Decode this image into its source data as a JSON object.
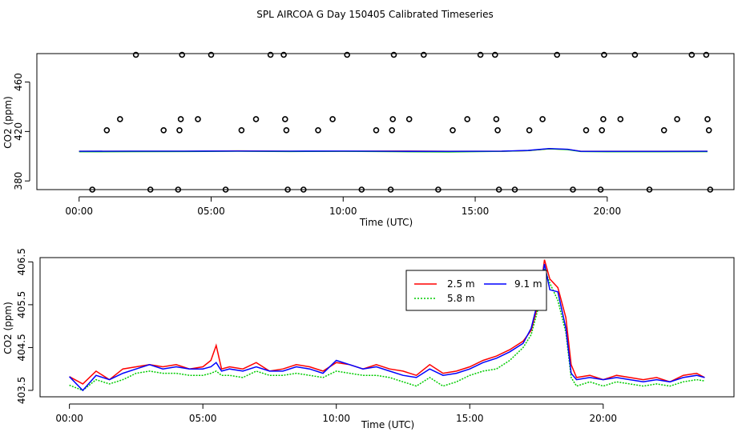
{
  "title": "SPL AIRCOA G  Day 150405  Calibrated Timeseries",
  "colors": {
    "red": "#ff0000",
    "green": "#00cc00",
    "blue": "#0000ff",
    "axis": "#000000"
  },
  "chart_data": [
    {
      "type": "scatter",
      "xlabel": "Time (UTC)",
      "ylabel": "CO2 (ppm)",
      "xlim": [
        -1.6,
        24.8
      ],
      "ylim": [
        373,
        483
      ],
      "xticks": [
        0,
        5,
        10,
        15,
        20
      ],
      "xtick_labels": [
        "00:00",
        "05:00",
        "10:00",
        "15:00",
        "20:00"
      ],
      "yticks": [
        380,
        420,
        460
      ],
      "ytick_labels": [
        "380",
        "420",
        "460"
      ],
      "points": [
        {
          "x": 0.5,
          "y": 373
        },
        {
          "x": 1.05,
          "y": 421
        },
        {
          "x": 1.55,
          "y": 430
        },
        {
          "x": 2.15,
          "y": 482
        },
        {
          "x": 2.7,
          "y": 373
        },
        {
          "x": 3.2,
          "y": 421
        },
        {
          "x": 3.75,
          "y": 373
        },
        {
          "x": 3.8,
          "y": 421
        },
        {
          "x": 3.85,
          "y": 430
        },
        {
          "x": 3.9,
          "y": 482
        },
        {
          "x": 4.5,
          "y": 430
        },
        {
          "x": 5.0,
          "y": 482
        },
        {
          "x": 5.55,
          "y": 373
        },
        {
          "x": 6.15,
          "y": 421
        },
        {
          "x": 6.7,
          "y": 430
        },
        {
          "x": 7.25,
          "y": 482
        },
        {
          "x": 7.75,
          "y": 482
        },
        {
          "x": 7.8,
          "y": 430
        },
        {
          "x": 7.85,
          "y": 421
        },
        {
          "x": 7.9,
          "y": 373
        },
        {
          "x": 8.5,
          "y": 373
        },
        {
          "x": 9.05,
          "y": 421
        },
        {
          "x": 9.6,
          "y": 430
        },
        {
          "x": 10.15,
          "y": 482
        },
        {
          "x": 10.7,
          "y": 373
        },
        {
          "x": 11.25,
          "y": 421
        },
        {
          "x": 11.8,
          "y": 373
        },
        {
          "x": 11.85,
          "y": 421
        },
        {
          "x": 11.88,
          "y": 430
        },
        {
          "x": 11.92,
          "y": 482
        },
        {
          "x": 12.5,
          "y": 430
        },
        {
          "x": 13.05,
          "y": 482
        },
        {
          "x": 13.6,
          "y": 373
        },
        {
          "x": 14.15,
          "y": 421
        },
        {
          "x": 14.7,
          "y": 430
        },
        {
          "x": 15.2,
          "y": 482
        },
        {
          "x": 15.75,
          "y": 482
        },
        {
          "x": 15.8,
          "y": 430
        },
        {
          "x": 15.85,
          "y": 421
        },
        {
          "x": 15.9,
          "y": 373
        },
        {
          "x": 16.5,
          "y": 373
        },
        {
          "x": 17.05,
          "y": 421
        },
        {
          "x": 17.55,
          "y": 430
        },
        {
          "x": 18.1,
          "y": 482
        },
        {
          "x": 18.7,
          "y": 373
        },
        {
          "x": 19.2,
          "y": 421
        },
        {
          "x": 19.75,
          "y": 373
        },
        {
          "x": 19.8,
          "y": 421
        },
        {
          "x": 19.85,
          "y": 430
        },
        {
          "x": 19.88,
          "y": 482
        },
        {
          "x": 20.5,
          "y": 430
        },
        {
          "x": 21.05,
          "y": 482
        },
        {
          "x": 21.6,
          "y": 373
        },
        {
          "x": 22.15,
          "y": 421
        },
        {
          "x": 22.65,
          "y": 430
        },
        {
          "x": 23.2,
          "y": 482
        },
        {
          "x": 23.75,
          "y": 482
        },
        {
          "x": 23.8,
          "y": 430
        },
        {
          "x": 23.85,
          "y": 421
        },
        {
          "x": 23.9,
          "y": 373
        }
      ],
      "series": [
        {
          "name": "2.5 m",
          "color": "#ff0000",
          "x": [
            0,
            2,
            4,
            6,
            8,
            10,
            12,
            14,
            16,
            17,
            17.8,
            18.5,
            19,
            20,
            22,
            23.8
          ],
          "y": [
            404,
            404,
            404,
            404.3,
            404,
            404,
            404.2,
            404,
            404,
            404.5,
            406,
            405.5,
            404,
            404,
            404,
            404
          ]
        },
        {
          "name": "5.8 m",
          "color": "#00cc00",
          "x": [
            0,
            2,
            4,
            6,
            8,
            10,
            12,
            14,
            16,
            17,
            17.8,
            18.5,
            19,
            20,
            22,
            23.8
          ],
          "y": [
            403.6,
            403.7,
            403.8,
            404,
            403.8,
            403.9,
            403.7,
            403.5,
            403.9,
            404.5,
            406,
            405.3,
            403.8,
            403.6,
            403.6,
            403.7
          ]
        },
        {
          "name": "9.1 m",
          "color": "#0000ff",
          "x": [
            0,
            2,
            4,
            6,
            8,
            10,
            12,
            14,
            16,
            17,
            17.8,
            18.5,
            19,
            20,
            22,
            23.8
          ],
          "y": [
            404,
            404.1,
            404.1,
            404.2,
            404.1,
            404.2,
            404,
            403.9,
            404.1,
            404.7,
            406.2,
            405.6,
            403.9,
            403.9,
            403.9,
            404
          ]
        }
      ]
    },
    {
      "type": "line",
      "xlabel": "Time (UTC)",
      "ylabel": "CO2 (ppm)",
      "xlim": [
        -1.1,
        24.9
      ],
      "ylim": [
        403.35,
        406.6
      ],
      "xticks": [
        0,
        5,
        10,
        15,
        20
      ],
      "xtick_labels": [
        "00:00",
        "05:00",
        "10:00",
        "15:00",
        "20:00"
      ],
      "yticks": [
        403.5,
        404.5,
        405.5,
        406.5
      ],
      "ytick_labels": [
        "403.5",
        "404.5",
        "405.5",
        "406.5"
      ],
      "legend": {
        "position": "top-right",
        "entries": [
          {
            "label": "2.5 m",
            "color": "#ff0000",
            "dash": "solid"
          },
          {
            "label": "9.1 m",
            "color": "#0000ff",
            "dash": "solid"
          },
          {
            "label": "5.8 m",
            "color": "#00cc00",
            "dash": "dotted"
          }
        ]
      },
      "series": [
        {
          "name": "2.5 m",
          "color": "#ff0000",
          "x": [
            0,
            0.5,
            1,
            1.5,
            2,
            2.5,
            3,
            3.5,
            4,
            4.5,
            5,
            5.3,
            5.5,
            5.7,
            6,
            6.5,
            7,
            7.5,
            8,
            8.5,
            9,
            9.5,
            10,
            10.5,
            11,
            11.5,
            12,
            12.5,
            13,
            13.5,
            14,
            14.5,
            15,
            15.5,
            16,
            16.5,
            17,
            17.3,
            17.6,
            17.8,
            18,
            18.3,
            18.6,
            18.8,
            19,
            19.5,
            20,
            20.5,
            21,
            21.5,
            22,
            22.5,
            23,
            23.5,
            23.8
          ],
          "y": [
            403.82,
            403.65,
            403.95,
            403.75,
            404.0,
            404.05,
            404.1,
            404.05,
            404.1,
            404.0,
            404.05,
            404.2,
            404.55,
            404.0,
            404.05,
            404.0,
            404.15,
            403.95,
            404.0,
            404.1,
            404.05,
            403.95,
            404.15,
            404.1,
            404.0,
            404.1,
            404.0,
            403.95,
            403.85,
            404.1,
            403.9,
            403.95,
            404.05,
            404.2,
            404.3,
            404.45,
            404.65,
            404.9,
            405.6,
            406.55,
            406.1,
            405.9,
            405.2,
            404.1,
            403.8,
            403.85,
            403.75,
            403.85,
            403.8,
            403.75,
            403.8,
            403.7,
            403.85,
            403.9,
            403.8
          ]
        },
        {
          "name": "5.8 m",
          "color": "#00cc00",
          "x": [
            0,
            0.5,
            1,
            1.5,
            2,
            2.5,
            3,
            3.5,
            4,
            4.5,
            5,
            5.3,
            5.5,
            5.7,
            6,
            6.5,
            7,
            7.5,
            8,
            8.5,
            9,
            9.5,
            10,
            10.5,
            11,
            11.5,
            12,
            12.5,
            13,
            13.5,
            14,
            14.5,
            15,
            15.5,
            16,
            16.5,
            17,
            17.3,
            17.6,
            17.8,
            18,
            18.3,
            18.6,
            18.8,
            19,
            19.5,
            20,
            20.5,
            21,
            21.5,
            22,
            22.5,
            23,
            23.5,
            23.8
          ],
          "y": [
            403.62,
            403.5,
            403.75,
            403.65,
            403.75,
            403.9,
            403.95,
            403.9,
            403.9,
            403.85,
            403.85,
            403.9,
            403.95,
            403.85,
            403.85,
            403.8,
            403.95,
            403.85,
            403.85,
            403.9,
            403.85,
            403.8,
            403.95,
            403.9,
            403.85,
            403.85,
            403.8,
            403.7,
            403.6,
            403.8,
            403.6,
            403.7,
            403.85,
            403.95,
            404.0,
            404.2,
            404.5,
            404.8,
            405.5,
            406.35,
            406.0,
            405.6,
            404.85,
            403.8,
            403.6,
            403.7,
            403.6,
            403.7,
            403.65,
            403.6,
            403.65,
            403.6,
            403.7,
            403.75,
            403.72
          ]
        },
        {
          "name": "9.1 m",
          "color": "#0000ff",
          "x": [
            0,
            0.5,
            1,
            1.5,
            2,
            2.5,
            3,
            3.5,
            4,
            4.5,
            5,
            5.3,
            5.5,
            5.7,
            6,
            6.5,
            7,
            7.5,
            8,
            8.5,
            9,
            9.5,
            10,
            10.5,
            11,
            11.5,
            12,
            12.5,
            13,
            13.5,
            14,
            14.5,
            15,
            15.5,
            16,
            16.5,
            17,
            17.3,
            17.6,
            17.8,
            18,
            18.3,
            18.6,
            18.8,
            19,
            19.5,
            20,
            20.5,
            21,
            21.5,
            22,
            22.5,
            23,
            23.5,
            23.8
          ],
          "y": [
            403.82,
            403.5,
            403.85,
            403.75,
            403.9,
            404.0,
            404.1,
            404.0,
            404.05,
            404.0,
            404.0,
            404.05,
            404.15,
            403.95,
            404.0,
            403.95,
            404.05,
            403.95,
            403.95,
            404.05,
            404.0,
            403.9,
            404.2,
            404.1,
            404.0,
            404.05,
            403.95,
            403.85,
            403.8,
            404.0,
            403.85,
            403.9,
            404.0,
            404.15,
            404.25,
            404.4,
            404.6,
            404.95,
            405.7,
            406.45,
            405.85,
            405.8,
            404.95,
            403.9,
            403.75,
            403.8,
            403.75,
            403.8,
            403.75,
            403.7,
            403.75,
            403.7,
            403.8,
            403.85,
            403.8
          ]
        }
      ]
    }
  ]
}
